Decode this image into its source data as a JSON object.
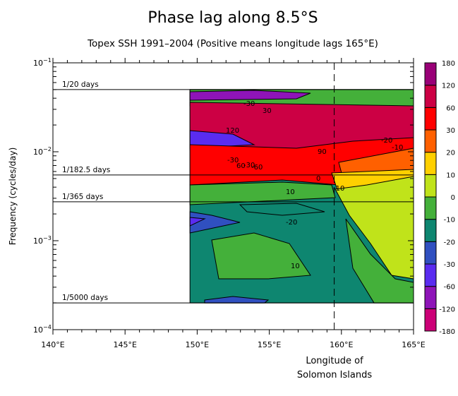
{
  "chart_data": {
    "type": "heatmap",
    "title": "Phase lag along 8.5°S",
    "subtitle": "Topex SSH 1991–2004 (Positive means longitude lags 165°E)",
    "xlabel": [
      "Longitude of",
      "Solomon Islands"
    ],
    "ylabel": "Frequency (cycles/day)",
    "xlim": [
      140,
      165
    ],
    "ylim_log10": [
      -4,
      -1
    ],
    "xticks": [
      {
        "value": 140,
        "label": "140°E"
      },
      {
        "value": 145,
        "label": "145°E"
      },
      {
        "value": 150,
        "label": "150°E"
      },
      {
        "value": 155,
        "label": "155°E"
      },
      {
        "value": 160,
        "label": "160°E"
      },
      {
        "value": 165,
        "label": "165°E"
      }
    ],
    "yticks": [
      {
        "exp": -1,
        "base": "10",
        "sup": "−1"
      },
      {
        "exp": -2,
        "base": "10",
        "sup": "−2"
      },
      {
        "exp": -3,
        "base": "10",
        "sup": "−3"
      },
      {
        "exp": -4,
        "base": "10",
        "sup": "−4"
      }
    ],
    "reference_lines": [
      {
        "label": "1/20 days",
        "period_days": 20
      },
      {
        "label": "1/182.5 days",
        "period_days": 182.5
      },
      {
        "label": "1/365 days",
        "period_days": 365
      },
      {
        "label": "1/5000 days",
        "period_days": 5000
      }
    ],
    "solomon_islands_longitude": 159.5,
    "data_longitude_range": [
      149.5,
      165
    ],
    "colorbar": {
      "levels": [
        "-180",
        "-120",
        "-60",
        "-30",
        "-20",
        "-10",
        "0",
        "10",
        "20",
        "30",
        "60",
        "120",
        "180"
      ],
      "colors": [
        "#cc0077",
        "#8e14b8",
        "#5a2cf0",
        "#3050c0",
        "#0e8670",
        "#44b03a",
        "#c0e31a",
        "#ffd000",
        "#ff6000",
        "#ff0000",
        "#cc0044",
        "#990077"
      ]
    },
    "contour_labels": [
      "120",
      "-30",
      "90",
      "-30",
      "60",
      "0",
      "10",
      "-10",
      "-20",
      "10",
      "-20",
      "-10",
      "30",
      "-30",
      "-60"
    ]
  }
}
